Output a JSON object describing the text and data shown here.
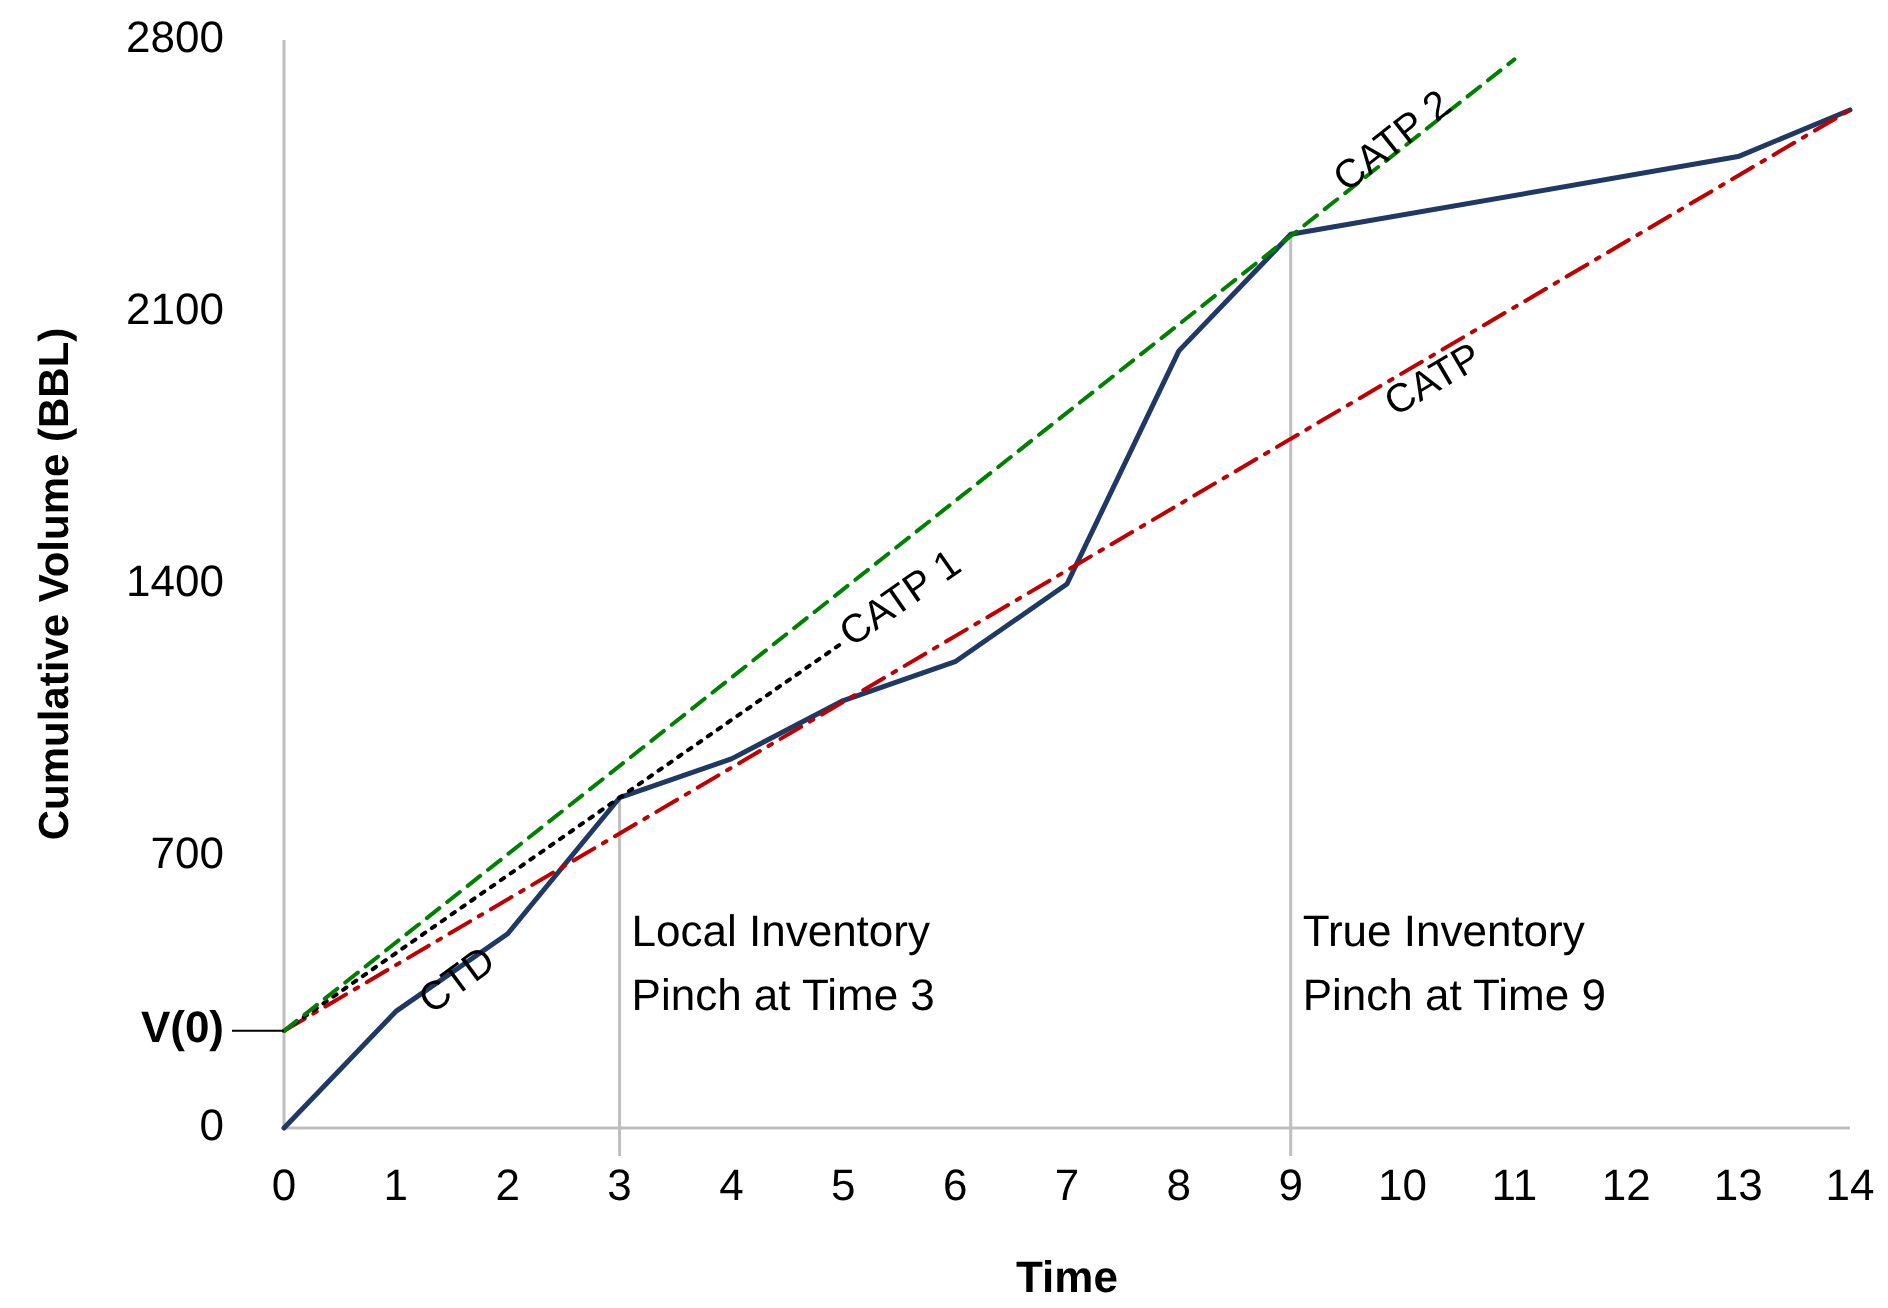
{
  "chart_data": {
    "type": "line",
    "xlabel": "Time",
    "ylabel": "Cumulative Volume (BBL)",
    "xlim": [
      0,
      14
    ],
    "xticks": [
      0,
      1,
      2,
      3,
      4,
      5,
      6,
      7,
      8,
      9,
      10,
      11,
      12,
      13,
      14
    ],
    "ylim": [
      0,
      2800
    ],
    "yticks": [
      0,
      {
        "value": 250,
        "label": "V(0)"
      },
      700,
      1400,
      2100,
      2800
    ],
    "grid": false,
    "marker": "none",
    "series": [
      {
        "name": "CTD",
        "color": "#1f3864",
        "line_style": "solid",
        "x": [
          0,
          1,
          2,
          3,
          4,
          5,
          6,
          7,
          8,
          9,
          13,
          14
        ],
        "values": [
          0,
          300,
          500,
          850,
          950,
          1100,
          1200,
          1400,
          2000,
          2300,
          2500,
          2620
        ]
      },
      {
        "name": "CATP",
        "color": "#c00000",
        "line_style": "dashdot",
        "x": [
          0,
          14
        ],
        "values": [
          250,
          2620
        ]
      },
      {
        "name": "CATP 1",
        "color": "#000000",
        "line_style": "dotted",
        "x": [
          0,
          5
        ],
        "values": [
          250,
          1250
        ]
      },
      {
        "name": "CATP 2",
        "color": "#008000",
        "line_style": "dashed",
        "x": [
          0,
          11
        ],
        "values": [
          250,
          2750
        ]
      }
    ],
    "ref_lines": [
      {
        "axis": "x",
        "value": 3,
        "label": "Local Inventory Pinch at Time 3",
        "color": "#bfbfbf"
      },
      {
        "axis": "x",
        "value": 9,
        "label": "True Inventory Pinch at Time 9",
        "color": "#bfbfbf"
      }
    ]
  }
}
